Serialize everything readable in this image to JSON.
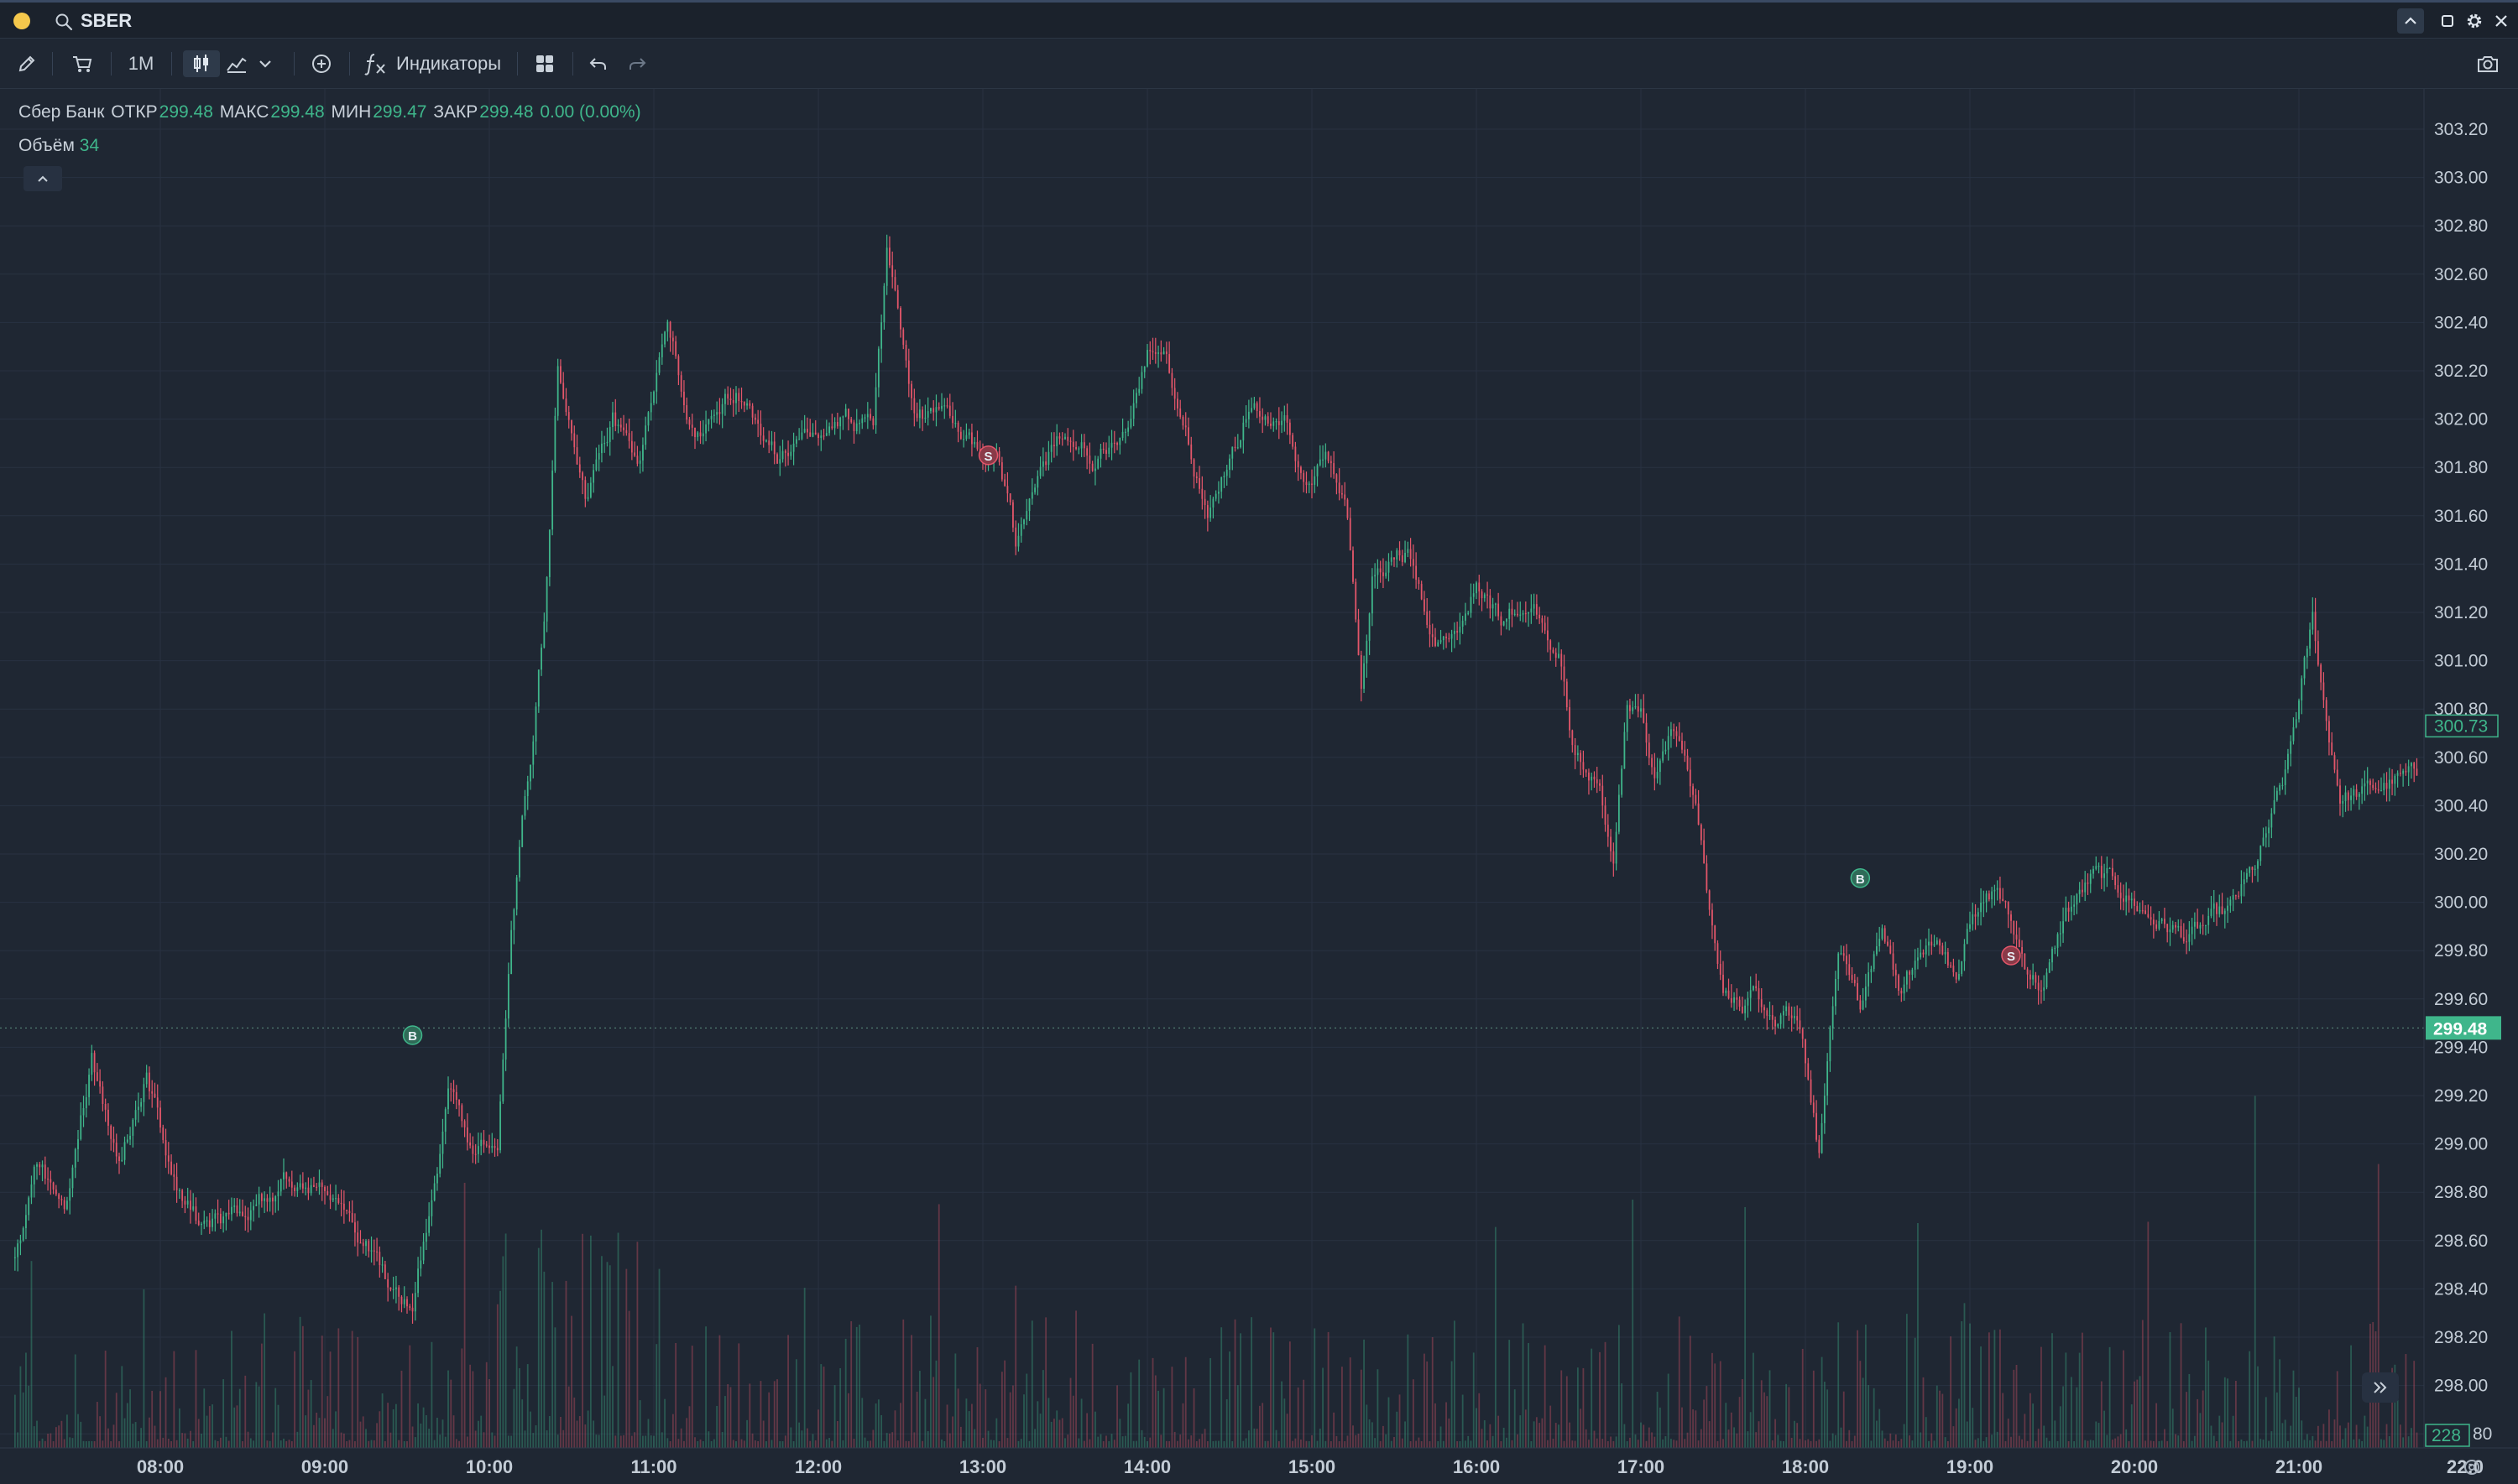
{
  "window": {
    "symbol": "SBER",
    "icons": [
      "search-icon",
      "chevron-up-icon",
      "maximize-icon",
      "gear-icon",
      "close-icon"
    ]
  },
  "toolbar": {
    "interval": "1M",
    "indicators_label": "Индикаторы",
    "icons": [
      "pencil-icon",
      "cart-icon",
      "candles-icon",
      "line-chart-icon",
      "chevron-down-icon",
      "add-circle-icon",
      "indicator-fx-icon",
      "layout-grid-icon",
      "undo-icon",
      "redo-icon",
      "camera-icon"
    ]
  },
  "legend": {
    "instrument": "Сбер Банк",
    "open_label": "ОТКР",
    "open": "299.48",
    "high_label": "МАКС",
    "high": "299.48",
    "low_label": "МИН",
    "low": "299.47",
    "close_label": "ЗАКР",
    "close": "299.48",
    "change": "0.00 (0.00%)",
    "volume_label": "Объём",
    "volume": "34"
  },
  "colors": {
    "background": "#1f2733",
    "up": "#3fb68b",
    "down": "#e3566a",
    "grid": "#283242",
    "text": "#c9d1da"
  },
  "chart_data": {
    "type": "candlestick",
    "interval": "1M",
    "y_axis": {
      "range": [
        297.8,
        303.35
      ],
      "ticks": [
        "303.20",
        "303.00",
        "302.80",
        "302.60",
        "302.40",
        "302.20",
        "302.00",
        "301.80",
        "301.60",
        "301.40",
        "301.20",
        "301.00",
        "300.80",
        "300.60",
        "300.40",
        "300.20",
        "300.00",
        "299.80",
        "299.60",
        "299.40",
        "299.20",
        "299.00",
        "298.80",
        "298.60",
        "298.40",
        "298.20",
        "298.00",
        "297.80"
      ]
    },
    "x_axis": {
      "ticks": [
        "08:00",
        "09:00",
        "10:00",
        "11:00",
        "12:00",
        "13:00",
        "14:00",
        "15:00",
        "16:00",
        "17:00",
        "18:00",
        "19:00",
        "20:00",
        "21:00",
        "22:0"
      ]
    },
    "price_path": [
      [
        "07:07",
        298.5
      ],
      [
        "07:15",
        298.9
      ],
      [
        "07:25",
        298.75
      ],
      [
        "07:35",
        299.35
      ],
      [
        "07:45",
        298.95
      ],
      [
        "07:55",
        299.3
      ],
      [
        "08:05",
        298.85
      ],
      [
        "08:15",
        298.65
      ],
      [
        "08:30",
        298.7
      ],
      [
        "08:45",
        298.85
      ],
      [
        "09:00",
        298.85
      ],
      [
        "09:15",
        298.6
      ],
      [
        "09:25",
        298.35
      ],
      [
        "09:32",
        298.3
      ],
      [
        "09:45",
        299.2
      ],
      [
        "09:55",
        298.95
      ],
      [
        "10:03",
        299.05
      ],
      [
        "10:08",
        299.9
      ],
      [
        "10:15",
        300.6
      ],
      [
        "10:20",
        301.2
      ],
      [
        "10:25",
        302.2
      ],
      [
        "10:35",
        301.7
      ],
      [
        "10:45",
        302.0
      ],
      [
        "10:55",
        301.8
      ],
      [
        "11:05",
        302.4
      ],
      [
        "11:15",
        301.9
      ],
      [
        "11:30",
        302.1
      ],
      [
        "11:45",
        301.85
      ],
      [
        "11:55",
        301.9
      ],
      [
        "12:10",
        302.0
      ],
      [
        "12:20",
        301.95
      ],
      [
        "12:25",
        302.7
      ],
      [
        "12:35",
        302.05
      ],
      [
        "12:50",
        301.95
      ],
      [
        "13:05",
        301.8
      ],
      [
        "13:12",
        301.45
      ],
      [
        "13:20",
        301.75
      ],
      [
        "13:30",
        301.95
      ],
      [
        "13:40",
        301.85
      ],
      [
        "13:50",
        301.9
      ],
      [
        "14:00",
        302.25
      ],
      [
        "14:06",
        302.35
      ],
      [
        "14:12",
        302.05
      ],
      [
        "14:22",
        301.6
      ],
      [
        "14:35",
        302.0
      ],
      [
        "14:50",
        301.95
      ],
      [
        "14:58",
        301.7
      ],
      [
        "15:05",
        301.85
      ],
      [
        "15:12",
        301.65
      ],
      [
        "15:15",
        301.35
      ],
      [
        "15:18",
        300.95
      ],
      [
        "15:22",
        301.4
      ],
      [
        "15:35",
        301.45
      ],
      [
        "15:45",
        301.05
      ],
      [
        "15:55",
        301.2
      ],
      [
        "16:00",
        301.35
      ],
      [
        "16:10",
        301.15
      ],
      [
        "16:20",
        301.3
      ],
      [
        "16:25",
        301.15
      ],
      [
        "16:30",
        301.05
      ],
      [
        "16:35",
        300.6
      ],
      [
        "16:45",
        300.5
      ],
      [
        "16:50",
        300.2
      ],
      [
        "16:55",
        300.8
      ],
      [
        "17:00",
        300.75
      ],
      [
        "17:05",
        300.5
      ],
      [
        "17:12",
        300.7
      ],
      [
        "17:20",
        300.4
      ],
      [
        "17:30",
        299.6
      ],
      [
        "17:40",
        299.6
      ],
      [
        "17:50",
        299.5
      ],
      [
        "17:58",
        299.5
      ],
      [
        "18:05",
        298.95
      ],
      [
        "18:12",
        299.85
      ],
      [
        "18:20",
        299.55
      ],
      [
        "18:28",
        299.95
      ],
      [
        "18:35",
        299.65
      ],
      [
        "18:45",
        299.85
      ],
      [
        "18:55",
        299.7
      ],
      [
        "19:00",
        299.9
      ],
      [
        "19:10",
        300.05
      ],
      [
        "19:20",
        299.75
      ],
      [
        "19:27",
        299.65
      ],
      [
        "19:35",
        299.95
      ],
      [
        "19:45",
        300.1
      ],
      [
        "19:55",
        300.05
      ],
      [
        "20:05",
        299.95
      ],
      [
        "20:20",
        299.85
      ],
      [
        "20:35",
        299.95
      ],
      [
        "20:45",
        300.15
      ],
      [
        "20:55",
        300.5
      ],
      [
        "21:05",
        301.15
      ],
      [
        "21:10",
        300.75
      ],
      [
        "21:15",
        300.45
      ],
      [
        "21:25",
        300.45
      ],
      [
        "21:35",
        300.5
      ],
      [
        "21:45",
        300.5
      ],
      [
        "21:55",
        300.65
      ],
      [
        "22:00",
        300.73
      ]
    ],
    "volume": {
      "overlay": "bottom",
      "last_value": "228",
      "scale_label": "80"
    },
    "markers": [
      {
        "type": "buy",
        "label": "B",
        "time": "09:32",
        "price": 299.45
      },
      {
        "type": "sell",
        "label": "S",
        "time": "13:02",
        "price": 301.85
      },
      {
        "type": "buy",
        "label": "B",
        "time": "18:20",
        "price": 300.1
      },
      {
        "type": "sell",
        "label": "S",
        "time": "19:15",
        "price": 299.78
      }
    ],
    "last_price": {
      "value": "299.48",
      "color": "#3fb68b"
    },
    "crosshair_price": {
      "value": "300.73"
    },
    "grid": true
  }
}
